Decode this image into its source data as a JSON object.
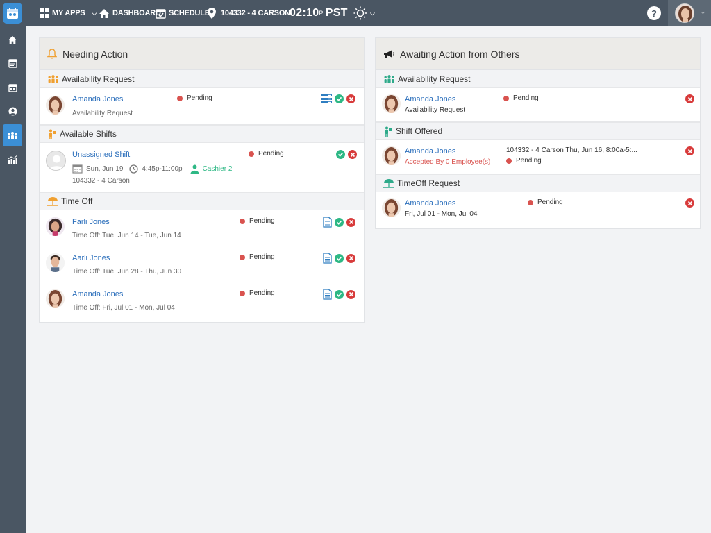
{
  "topbar": {
    "my_apps": "MY APPS",
    "dashboard": "DASHBOARD",
    "schedule": "SCHEDULE",
    "location": "104332 - 4 CARSON",
    "clock_time": "02:10",
    "clock_sup": "P",
    "clock_tz": "PST",
    "help": "?"
  },
  "needing_action": {
    "title": "Needing Action",
    "sections": {
      "availability": {
        "title": "Availability Request",
        "rows": [
          {
            "name": "Amanda Jones",
            "sub": "Availability Request",
            "status": "Pending"
          }
        ]
      },
      "shifts": {
        "title": "Available Shifts",
        "rows": [
          {
            "name": "Unassigned Shift",
            "date": "Sun, Jun 19",
            "time": "4:45p-11:00p",
            "role": "Cashier 2",
            "location": "104332 - 4 Carson",
            "status": "Pending"
          }
        ]
      },
      "timeoff": {
        "title": "Time Off",
        "rows": [
          {
            "name": "Farli Jones",
            "sub": "Time Off: Tue, Jun 14 - Tue, Jun 14",
            "status": "Pending"
          },
          {
            "name": "Aarli Jones",
            "sub": "Time Off: Tue, Jun 28 - Thu, Jun 30",
            "status": "Pending"
          },
          {
            "name": "Amanda Jones",
            "sub": "Time Off: Fri, Jul 01 - Mon, Jul 04",
            "status": "Pending"
          }
        ]
      }
    }
  },
  "awaiting_action": {
    "title": "Awaiting Action from Others",
    "sections": {
      "availability": {
        "title": "Availability Request",
        "rows": [
          {
            "name": "Amanda Jones",
            "sub": "Availability Request",
            "status": "Pending"
          }
        ]
      },
      "shift_offered": {
        "title": "Shift Offered",
        "rows": [
          {
            "name": "Amanda Jones",
            "sub": "Accepted By 0 Employee(s)",
            "detail": "104332 - 4 Carson Thu, Jun 16, 8:00a-5:...",
            "status": "Pending"
          }
        ]
      },
      "timeoff": {
        "title": "TimeOff Request",
        "rows": [
          {
            "name": "Amanda Jones",
            "sub": "Fri, Jul 01 - Mon, Jul 04",
            "status": "Pending"
          }
        ]
      }
    }
  },
  "colors": {
    "topbar": "#4a5663",
    "accent": "#3b8fd6",
    "link": "#2a6ebb",
    "pending": "#d9534f",
    "approve": "#2eb885",
    "reject": "#d83b3b"
  }
}
